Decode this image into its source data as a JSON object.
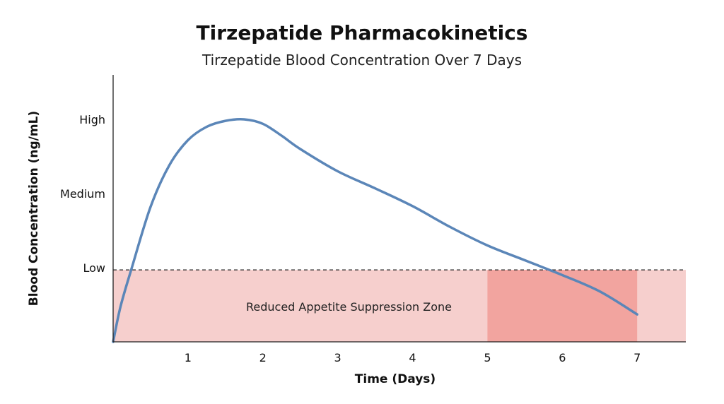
{
  "chart_data": {
    "type": "line",
    "title": "Tirzepatide Pharmacokinetics",
    "subtitle": "Tirzepatide Blood Concentration Over 7 Days",
    "xlabel": "Time (Days)",
    "ylabel": "Blood Concentration (ng/mL)",
    "x_ticks": [
      "1",
      "2",
      "3",
      "4",
      "5",
      "6",
      "7"
    ],
    "y_ticks": [
      {
        "label": "Low",
        "value": 1
      },
      {
        "label": "Medium",
        "value": 2
      },
      {
        "label": "High",
        "value": 3
      }
    ],
    "xlim": [
      0,
      7.65
    ],
    "ylim": [
      0,
      3.6
    ],
    "series": [
      {
        "color": "#5b86b8",
        "x": [
          0,
          0.1,
          0.25,
          0.5,
          0.75,
          1.0,
          1.25,
          1.5,
          1.75,
          2.0,
          2.25,
          2.5,
          3.0,
          3.5,
          4.0,
          4.5,
          5.0,
          5.5,
          6.0,
          6.5,
          7.0
        ],
        "y": [
          0,
          0.48,
          1.0,
          1.82,
          2.38,
          2.72,
          2.9,
          2.98,
          3.0,
          2.94,
          2.78,
          2.6,
          2.3,
          2.07,
          1.83,
          1.55,
          1.3,
          1.1,
          0.9,
          0.68,
          0.37
        ]
      }
    ],
    "threshold": {
      "value": 0.97,
      "style": "dashed"
    },
    "zones": [
      {
        "label": "Reduced Appetite Suppression Zone",
        "x_from": 0,
        "x_to": 7.65,
        "y_from": 0,
        "y_to": 0.97,
        "color": "#f6cfcd"
      },
      {
        "label": "",
        "x_from": 5,
        "x_to": 7,
        "y_from": 0,
        "y_to": 0.97,
        "color": "#f2a49f"
      }
    ],
    "grid": false,
    "legend": "none"
  }
}
